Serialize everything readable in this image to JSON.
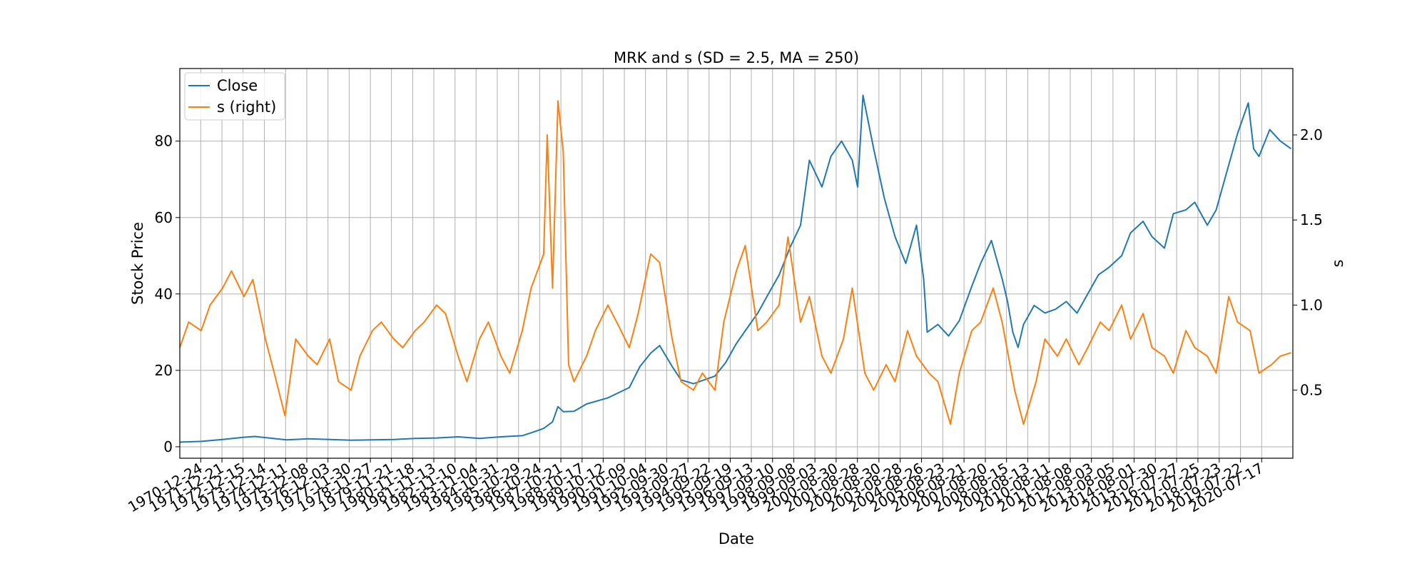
{
  "chart_data": {
    "type": "line",
    "title": "MRK and s (SD = 2.5, MA = 250)",
    "xlabel": "Date",
    "ylabel": "Stock Price",
    "y2label": "s",
    "grid": true,
    "legend_placement": "top-left",
    "xlim": [
      "1970-01-01",
      "2021-12-31"
    ],
    "ylim": [
      -3,
      99
    ],
    "y2lim": [
      0.1,
      2.39
    ],
    "y_ticks": [
      0,
      20,
      40,
      60,
      80
    ],
    "y2_ticks": [
      0.5,
      1.0,
      1.5,
      2.0
    ],
    "x_ticks": [
      "1970-12-24",
      "1971-12-21",
      "1972-12-15",
      "1973-12-14",
      "1974-12-11",
      "1975-12-08",
      "1976-12-03",
      "1977-11-30",
      "1978-11-27",
      "1979-11-21",
      "1980-11-18",
      "1981-11-13",
      "1982-11-10",
      "1983-11-04",
      "1984-10-31",
      "1985-10-29",
      "1986-10-24",
      "1987-10-21",
      "1988-10-17",
      "1989-10-12",
      "1990-10-09",
      "1991-10-04",
      "1992-09-30",
      "1993-09-27",
      "1994-09-22",
      "1995-09-19",
      "1996-09-13",
      "1997-09-10",
      "1998-09-08",
      "1999-09-03",
      "2000-08-30",
      "2001-08-28",
      "2002-08-30",
      "2003-08-28",
      "2004-08-26",
      "2005-08-23",
      "2006-08-21",
      "2007-08-20",
      "2008-08-15",
      "2009-08-13",
      "2010-08-11",
      "2011-08-08",
      "2012-08-03",
      "2013-08-05",
      "2014-08-01",
      "2015-07-30",
      "2016-07-27",
      "2017-07-25",
      "2018-07-23",
      "2019-07-22",
      "2020-07-17"
    ],
    "series": [
      {
        "name": "Close",
        "axis": "left",
        "color": "#1f77b4",
        "x": [
          "1970-01-01",
          "1971-01-01",
          "1972-01-01",
          "1973-01-01",
          "1973-07-01",
          "1974-01-01",
          "1974-07-01",
          "1975-01-01",
          "1976-01-01",
          "1977-01-01",
          "1978-01-01",
          "1979-01-01",
          "1980-01-01",
          "1981-01-01",
          "1982-01-01",
          "1983-01-01",
          "1984-01-01",
          "1985-01-01",
          "1986-01-01",
          "1986-07-01",
          "1987-01-01",
          "1987-06-01",
          "1987-09-01",
          "1987-12-01",
          "1988-06-01",
          "1989-01-01",
          "1990-01-01",
          "1991-01-01",
          "1991-07-01",
          "1992-01-01",
          "1992-06-01",
          "1993-01-01",
          "1993-06-01",
          "1994-01-01",
          "1995-01-01",
          "1995-07-01",
          "1996-01-01",
          "1996-07-01",
          "1997-01-01",
          "1997-07-01",
          "1998-01-01",
          "1998-07-01",
          "1999-01-01",
          "1999-06-01",
          "2000-01-01",
          "2000-06-01",
          "2000-12-01",
          "2001-06-01",
          "2001-09-01",
          "2001-12-01",
          "2002-06-01",
          "2002-12-01",
          "2003-06-01",
          "2003-12-01",
          "2004-06-01",
          "2004-10-01",
          "2004-12-01",
          "2005-06-01",
          "2005-12-01",
          "2006-06-01",
          "2007-01-01",
          "2007-06-01",
          "2007-12-01",
          "2008-06-01",
          "2008-09-01",
          "2008-12-01",
          "2009-03-01",
          "2009-06-01",
          "2009-12-01",
          "2010-06-01",
          "2010-12-01",
          "2011-06-01",
          "2011-12-01",
          "2012-06-01",
          "2012-12-01",
          "2013-06-01",
          "2014-01-01",
          "2014-06-01",
          "2015-01-01",
          "2015-06-01",
          "2016-01-01",
          "2016-06-01",
          "2017-01-01",
          "2017-06-01",
          "2018-01-01",
          "2018-06-01",
          "2018-12-01",
          "2019-06-01",
          "2019-12-01",
          "2020-03-01",
          "2020-06-01",
          "2020-12-01",
          "2021-06-01",
          "2021-12-01"
        ],
        "y": [
          1.2,
          1.4,
          1.9,
          2.5,
          2.7,
          2.4,
          2.1,
          1.8,
          2.1,
          1.9,
          1.7,
          1.8,
          1.9,
          2.2,
          2.3,
          2.6,
          2.2,
          2.6,
          2.9,
          3.8,
          4.8,
          6.5,
          10.5,
          9.2,
          9.3,
          11.2,
          12.8,
          15.5,
          21.0,
          24.5,
          26.5,
          21.0,
          17.5,
          16.5,
          18.5,
          22.0,
          27.0,
          31.0,
          35.0,
          40.0,
          45.0,
          52.0,
          58.0,
          75.0,
          68.0,
          76.0,
          80.0,
          75.0,
          68.0,
          92.0,
          78.0,
          65.0,
          55.0,
          48.0,
          58.0,
          44.0,
          30.0,
          32.0,
          29.0,
          33.0,
          42.0,
          48.0,
          54.0,
          44.0,
          38.0,
          30.0,
          26.0,
          32.0,
          37.0,
          35.0,
          36.0,
          38.0,
          35.0,
          40.0,
          45.0,
          47.0,
          50.0,
          56.0,
          59.0,
          55.0,
          52.0,
          61.0,
          62.0,
          64.0,
          58.0,
          62.0,
          72.0,
          82.0,
          90.0,
          78.0,
          76.0,
          83.0,
          80.0,
          78.0
        ]
      },
      {
        "name": "s (right)",
        "axis": "right",
        "color": "#ff7f0e",
        "x": [
          "1970-01-01",
          "1970-06-01",
          "1971-01-01",
          "1971-06-01",
          "1972-01-01",
          "1972-06-01",
          "1973-01-01",
          "1973-06-01",
          "1974-01-01",
          "1974-06-01",
          "1974-12-01",
          "1975-06-01",
          "1976-01-01",
          "1976-06-01",
          "1977-01-01",
          "1977-06-01",
          "1978-01-01",
          "1978-06-01",
          "1979-01-01",
          "1979-06-01",
          "1980-01-01",
          "1980-06-01",
          "1981-01-01",
          "1981-06-01",
          "1982-01-01",
          "1982-06-01",
          "1983-01-01",
          "1983-06-01",
          "1984-01-01",
          "1984-06-01",
          "1985-01-01",
          "1985-06-01",
          "1986-01-01",
          "1986-06-01",
          "1987-01-01",
          "1987-03-01",
          "1987-06-01",
          "1987-09-01",
          "1987-12-01",
          "1988-03-01",
          "1988-06-01",
          "1989-01-01",
          "1989-06-01",
          "1990-01-01",
          "1990-06-01",
          "1991-01-01",
          "1991-06-01",
          "1992-01-01",
          "1992-06-01",
          "1993-01-01",
          "1993-06-01",
          "1994-01-01",
          "1994-06-01",
          "1995-01-01",
          "1995-06-01",
          "1996-01-01",
          "1996-06-01",
          "1997-01-01",
          "1997-06-01",
          "1998-01-01",
          "1998-06-01",
          "1999-01-01",
          "1999-06-01",
          "2000-01-01",
          "2000-06-01",
          "2001-01-01",
          "2001-06-01",
          "2002-01-01",
          "2002-06-01",
          "2003-01-01",
          "2003-06-01",
          "2004-01-01",
          "2004-06-01",
          "2005-01-01",
          "2005-06-01",
          "2006-01-01",
          "2006-06-01",
          "2007-01-01",
          "2007-06-01",
          "2008-01-01",
          "2008-06-01",
          "2009-01-01",
          "2009-06-01",
          "2010-01-01",
          "2010-06-01",
          "2011-01-01",
          "2011-06-01",
          "2012-01-01",
          "2012-06-01",
          "2013-01-01",
          "2013-06-01",
          "2014-01-01",
          "2014-06-01",
          "2015-01-01",
          "2015-06-01",
          "2016-01-01",
          "2016-06-01",
          "2017-01-01",
          "2017-06-01",
          "2018-01-01",
          "2018-06-01",
          "2019-01-01",
          "2019-06-01",
          "2020-01-01",
          "2020-06-01",
          "2021-01-01",
          "2021-06-01",
          "2021-12-01"
        ],
        "y": [
          0.75,
          0.9,
          0.85,
          1.0,
          1.1,
          1.2,
          1.05,
          1.15,
          0.8,
          0.6,
          0.35,
          0.8,
          0.7,
          0.65,
          0.8,
          0.55,
          0.5,
          0.7,
          0.85,
          0.9,
          0.8,
          0.75,
          0.85,
          0.9,
          1.0,
          0.95,
          0.7,
          0.55,
          0.8,
          0.9,
          0.7,
          0.6,
          0.85,
          1.1,
          1.3,
          2.0,
          1.1,
          2.2,
          1.9,
          0.65,
          0.55,
          0.7,
          0.85,
          1.0,
          0.9,
          0.75,
          0.95,
          1.3,
          1.25,
          0.8,
          0.55,
          0.5,
          0.6,
          0.5,
          0.9,
          1.2,
          1.35,
          0.85,
          0.9,
          1.0,
          1.4,
          0.9,
          1.05,
          0.7,
          0.6,
          0.8,
          1.1,
          0.6,
          0.5,
          0.65,
          0.55,
          0.85,
          0.7,
          0.6,
          0.55,
          0.3,
          0.6,
          0.85,
          0.9,
          1.1,
          0.9,
          0.5,
          0.3,
          0.55,
          0.8,
          0.7,
          0.8,
          0.65,
          0.75,
          0.9,
          0.85,
          1.0,
          0.8,
          0.95,
          0.75,
          0.7,
          0.6,
          0.85,
          0.75,
          0.7,
          0.6,
          1.05,
          0.9,
          0.85,
          0.6,
          0.65,
          0.7,
          0.72
        ]
      }
    ]
  }
}
